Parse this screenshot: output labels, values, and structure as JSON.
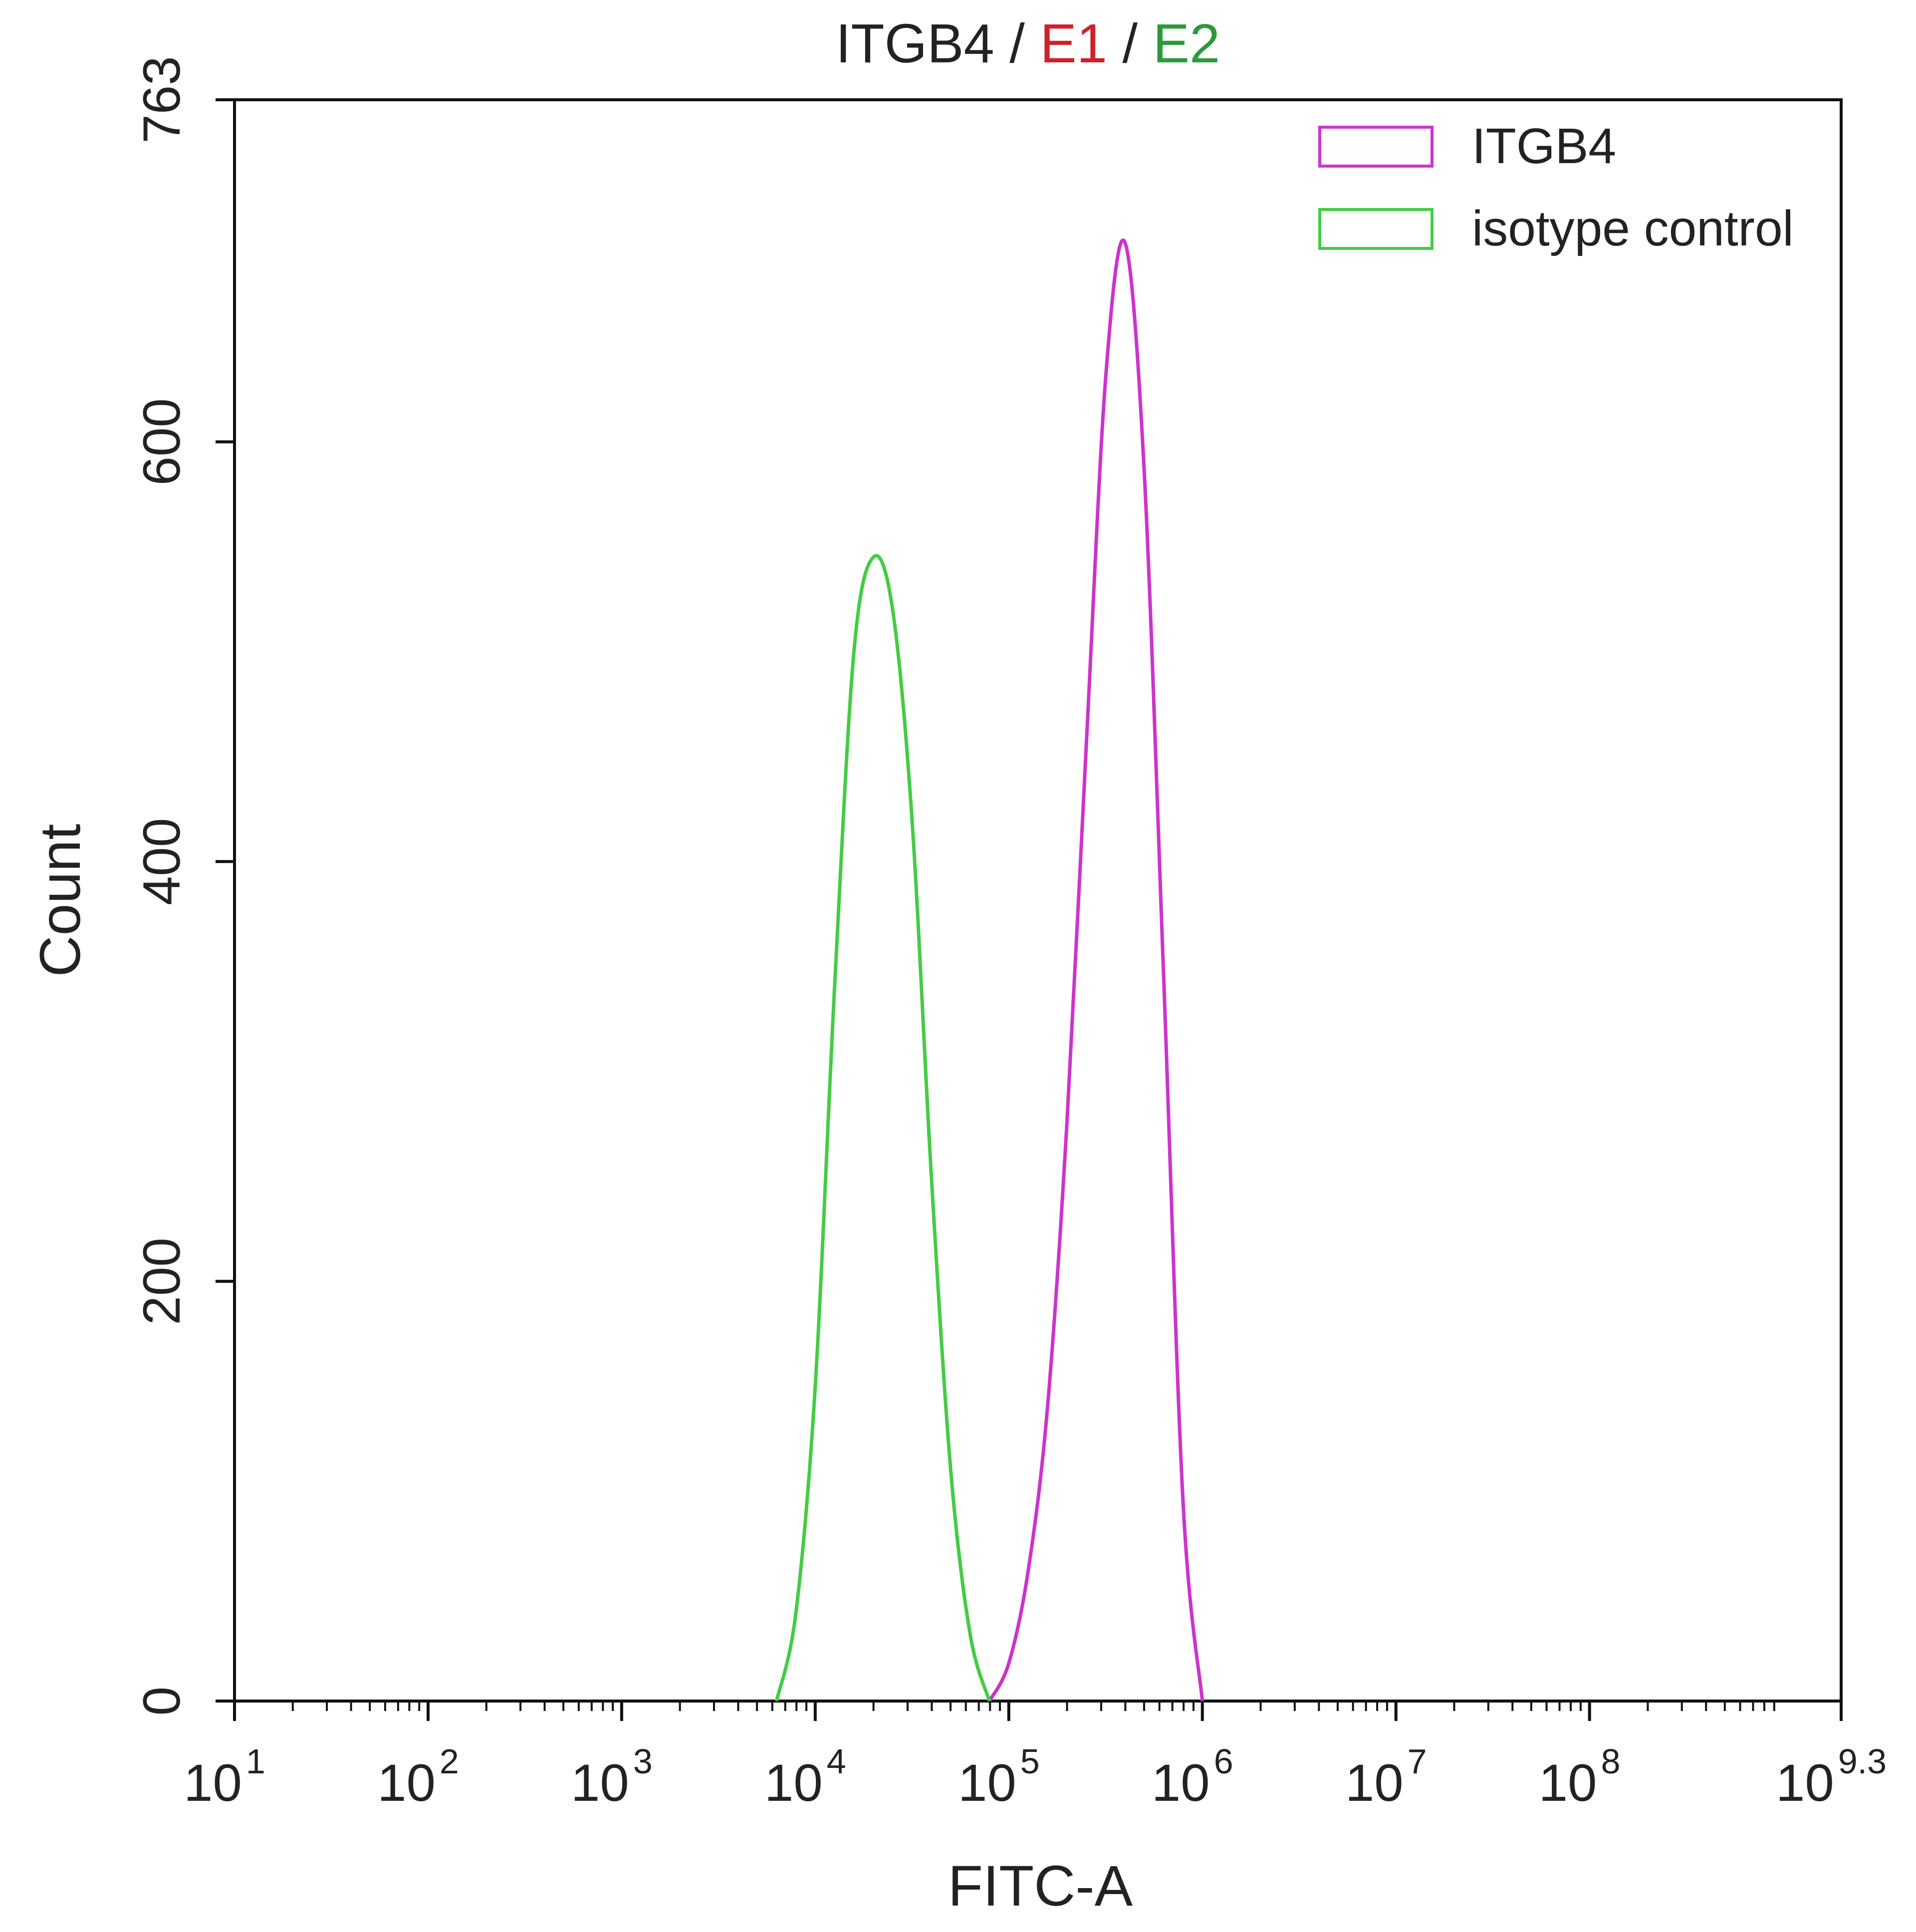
{
  "title": {
    "parts": [
      {
        "text": "ITGB4",
        "color": "#222222"
      },
      {
        "text": " / ",
        "color": "#222222"
      },
      {
        "text": "E1",
        "color": "#d0202a"
      },
      {
        "text": " / ",
        "color": "#222222"
      },
      {
        "text": "E2",
        "color": "#2a9a3a"
      }
    ]
  },
  "chart_data": {
    "type": "line",
    "title": "ITGB4 / E1 / E2",
    "xlabel": "FITC-A",
    "ylabel": "Count",
    "x_scale": "log10",
    "xlim": [
      10,
      1995262315
    ],
    "ylim": [
      0,
      763
    ],
    "x_ticks": [
      {
        "value": 10,
        "base": "10",
        "exp": "1"
      },
      {
        "value": 100,
        "base": "10",
        "exp": "2"
      },
      {
        "value": 1000,
        "base": "10",
        "exp": "3"
      },
      {
        "value": 10000,
        "base": "10",
        "exp": "4"
      },
      {
        "value": 100000,
        "base": "10",
        "exp": "5"
      },
      {
        "value": 1000000,
        "base": "10",
        "exp": "6"
      },
      {
        "value": 10000000,
        "base": "10",
        "exp": "7"
      },
      {
        "value": 100000000,
        "base": "10",
        "exp": "8"
      },
      {
        "value": 1995262315,
        "base": "10",
        "exp": "9.3"
      }
    ],
    "y_ticks": [
      {
        "value": 0,
        "label": "0"
      },
      {
        "value": 200,
        "label": "200"
      },
      {
        "value": 400,
        "label": "400"
      },
      {
        "value": 600,
        "label": "600"
      },
      {
        "value": 763,
        "label": "763"
      }
    ],
    "grid": false,
    "legend_position": "top-right",
    "series": [
      {
        "name": "ITGB4",
        "color": "#cc33cc",
        "x": [
          79433,
          100000,
          125893,
          158489,
          199526,
          251189,
          316228,
          398107,
          501187,
          630957,
          794328,
          1000000
        ],
        "y": [
          0,
          18,
          62,
          140,
          275,
          455,
          630,
          695,
          585,
          345,
          95,
          0
        ]
      },
      {
        "name": "isotype control",
        "color": "#44cc44",
        "x": [
          6310,
          7943,
          10000,
          12589,
          15849,
          19953,
          25119,
          31623,
          39811,
          50119,
          63096,
          79433
        ],
        "y": [
          0,
          42,
          150,
          340,
          500,
          545,
          520,
          420,
          250,
          110,
          32,
          0
        ]
      }
    ]
  }
}
